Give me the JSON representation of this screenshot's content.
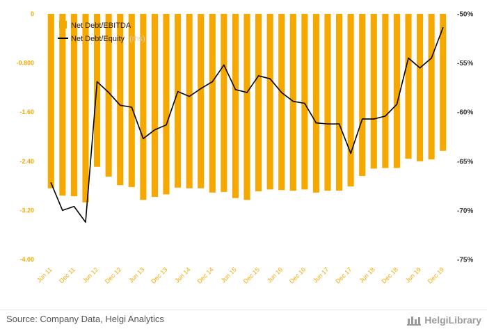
{
  "chart_data": {
    "type": "bar",
    "categories": [
      "Jun 11",
      "Sep 11",
      "Dec 11",
      "Mar 12",
      "Jun 12",
      "Sep 12",
      "Dec 12",
      "Mar 13",
      "Jun 13",
      "Sep 13",
      "Dec 13",
      "Mar 14",
      "Jun 14",
      "Sep 14",
      "Dec 14",
      "Mar 15",
      "Jun 15",
      "Sep 15",
      "Dec 15",
      "Mar 16",
      "Jun 16",
      "Sep 16",
      "Dec 16",
      "Mar 17",
      "Jun 17",
      "Sep 17",
      "Dec 17",
      "Mar 18",
      "Jun 18",
      "Sep 18",
      "Dec 18",
      "Mar 19",
      "Jun 19",
      "Sep 19",
      "Dec 19"
    ],
    "x_tick_labels": [
      "Jun 11",
      "Dec 11",
      "Jun 12",
      "Dec 12",
      "Jun 13",
      "Dec 13",
      "Jun 14",
      "Dec 14",
      "Jun 15",
      "Dec 15",
      "Jun 16",
      "Dec 16",
      "Jun 17",
      "Dec 17",
      "Jun 18",
      "Dec 18",
      "Jun 19",
      "Dec 19"
    ],
    "series": [
      {
        "name": "Net Debt/EBITDA",
        "kind": "bar",
        "axis": "left",
        "color": "#f5a800",
        "values": [
          -2.84,
          -2.96,
          -2.97,
          -3.07,
          -2.49,
          -2.65,
          -2.79,
          -2.82,
          -3.03,
          -2.98,
          -2.94,
          -2.83,
          -2.84,
          -2.84,
          -2.91,
          -2.9,
          -3.0,
          -3.03,
          -2.89,
          -2.86,
          -2.87,
          -2.88,
          -2.86,
          -2.91,
          -2.88,
          -2.88,
          -2.81,
          -2.64,
          -2.52,
          -2.51,
          -2.51,
          -2.36,
          -2.4,
          -2.37,
          -2.23
        ]
      },
      {
        "name": "Net Debt/Equity",
        "kind": "line",
        "axis": "right",
        "color": "#000000",
        "values": [
          -67.2,
          -70.0,
          -69.6,
          -71.2,
          -56.9,
          -58.0,
          -59.3,
          -59.5,
          -62.7,
          -61.8,
          -61.3,
          -57.9,
          -58.4,
          -57.6,
          -56.9,
          -55.2,
          -57.7,
          -58.0,
          -56.3,
          -56.6,
          -58.0,
          -58.9,
          -59.1,
          -61.1,
          -61.2,
          -61.2,
          -64.2,
          -60.7,
          -60.7,
          -60.4,
          -59.2,
          -54.5,
          -55.5,
          -54.5,
          -51.4
        ]
      }
    ],
    "y_left": {
      "min": -4.0,
      "max": 0.0,
      "ticks": [
        "0",
        "-0.800",
        "-1.60",
        "-2.40",
        "-3.20",
        "-4.00"
      ]
    },
    "y_right": {
      "min": -75,
      "max": -50,
      "ticks": [
        "-50%",
        "-55%",
        "-60%",
        "-65%",
        "-70%",
        "-75%"
      ]
    },
    "legend": {
      "placement": "top-left",
      "items": [
        {
          "label": "Net Debt/EBITDA",
          "color": "#f5a800",
          "marker": "square"
        },
        {
          "label": "Net Debt/Equity",
          "note": "(rhs)",
          "color": "#000000",
          "marker": "line"
        }
      ]
    },
    "grid": false
  },
  "footer": {
    "source": "Source: Company Data, Helgi Analytics",
    "brand": "HelgiLibrary"
  }
}
